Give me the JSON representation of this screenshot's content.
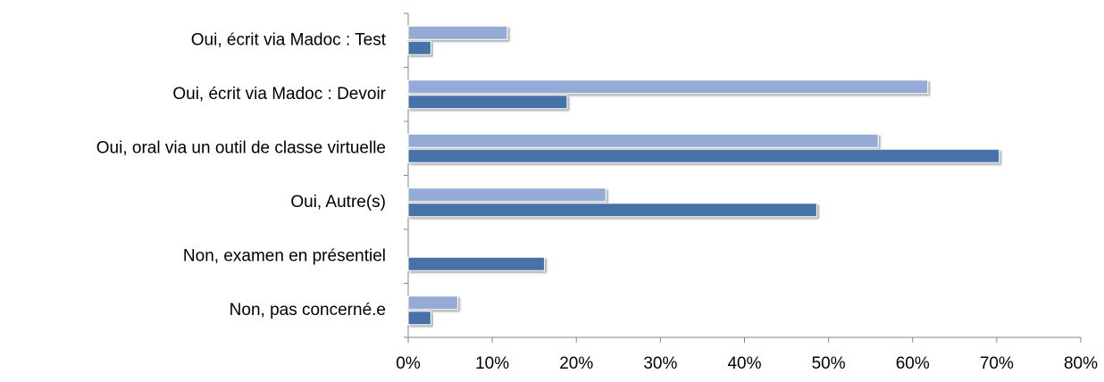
{
  "chart_data": {
    "type": "bar",
    "orientation": "horizontal",
    "categories": [
      "Oui, écrit via Madoc : Test",
      "Oui, écrit via Madoc : Devoir",
      "Oui, oral via un outil de classe virtuelle",
      "Oui, Autre(s)",
      "Non, examen en présentiel",
      "Non, pas concerné.e"
    ],
    "series": [
      {
        "color": "#95abd6",
        "values": [
          11.8,
          61.8,
          55.9,
          23.5,
          0,
          5.9
        ]
      },
      {
        "color": "#4672a8",
        "values": [
          2.7,
          18.9,
          70.3,
          48.6,
          16.2,
          2.7
        ]
      }
    ],
    "x_ticks": [
      "0%",
      "10%",
      "20%",
      "30%",
      "40%",
      "50%",
      "60%",
      "70%",
      "80%"
    ],
    "xlim": [
      0,
      80
    ],
    "grid": false,
    "legend": "none"
  }
}
